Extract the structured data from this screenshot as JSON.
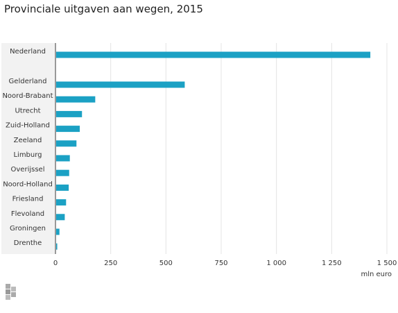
{
  "chart_data": {
    "type": "bar",
    "orientation": "horizontal",
    "title": "Provinciale uitgaven aan wegen, 2015",
    "xlabel": "mln euro",
    "ylabel": "",
    "xlim": [
      0,
      1500
    ],
    "ticks": [
      0,
      250,
      500,
      750,
      1000,
      1250,
      1500
    ],
    "tick_labels": [
      "0",
      "250",
      "500",
      "750",
      "1 000",
      "1 250",
      "1 500"
    ],
    "grid": true,
    "categories": [
      "Nederland",
      "Gelderland",
      "Noord-Brabant",
      "Utrecht",
      "Zuid-Holland",
      "Zeeland",
      "Limburg",
      "Overijssel",
      "Noord-Holland",
      "Friesland",
      "Flevoland",
      "Groningen",
      "Drenthe"
    ],
    "values": [
      1425,
      585,
      180,
      120,
      110,
      95,
      65,
      62,
      60,
      48,
      42,
      18,
      8
    ],
    "bar_color": "#1ba1c4"
  },
  "logo": {
    "name": "cbs-logo-icon"
  }
}
